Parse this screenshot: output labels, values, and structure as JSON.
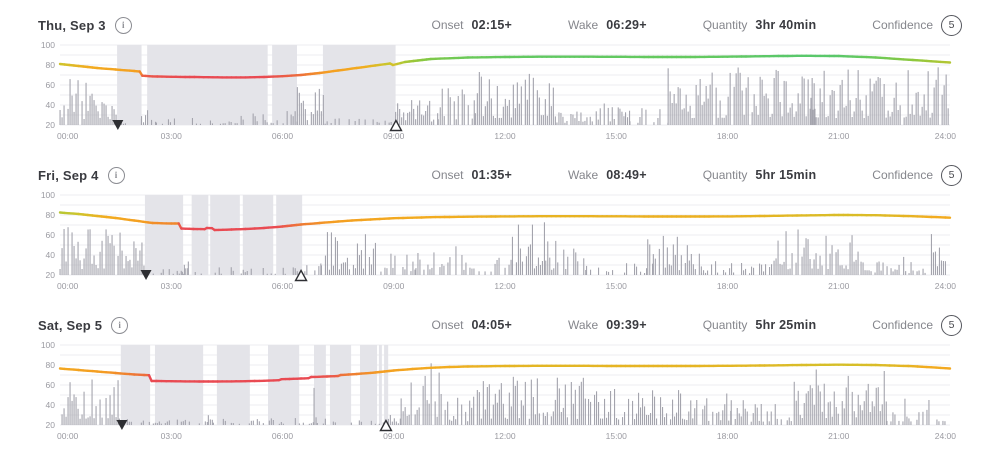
{
  "metrics_labels": {
    "onset": "Onset",
    "wake": "Wake",
    "quantity": "Quantity",
    "confidence": "Confidence"
  },
  "info_icon_glyph": "i",
  "colors": {
    "bar": "#a4a4ad",
    "sleep_block": "#e4e4e9",
    "grid": "#ededf1",
    "axis_text": "#9a9aa1",
    "marker": "#2e2f33",
    "line_color_anchors": [
      [
        68,
        "#e94a52"
      ],
      [
        71,
        "#ef8130"
      ],
      [
        73,
        "#f49d22"
      ],
      [
        78,
        "#f2ac1f"
      ],
      [
        81,
        "#cdc52c"
      ],
      [
        85,
        "#8cc83e"
      ],
      [
        88,
        "#64c95e"
      ],
      [
        92,
        "#3fc48c"
      ]
    ]
  },
  "axis": {
    "y_ticks": [
      100,
      80,
      60,
      40,
      20
    ],
    "y_min": 20,
    "y_max": 100,
    "x_tick_hours": [
      0,
      3,
      6,
      9,
      12,
      15,
      18,
      21,
      24
    ],
    "x_tick_labels": [
      "00:00",
      "03:00",
      "06:00",
      "09:00",
      "12:00",
      "15:00",
      "18:00",
      "21:00",
      "24:00"
    ],
    "grid_step": 10
  },
  "chart_data": [
    {
      "type": "line+bars",
      "date": "Thu, Sep 3",
      "onset": "02:15+",
      "wake": "06:29+",
      "quantity": "3hr 40min",
      "confidence": "5",
      "seed": 3,
      "sleep_blocks": [
        [
          1.54,
          2.2
        ],
        [
          2.35,
          5.6
        ],
        [
          5.72,
          6.39
        ],
        [
          7.09,
          9.05
        ]
      ],
      "onset_marker_hour": 1.56,
      "wake_marker_hour": 9.06,
      "line": [
        [
          0,
          81
        ],
        [
          0.5,
          79
        ],
        [
          1,
          77
        ],
        [
          1.5,
          75.5
        ],
        [
          2,
          74
        ],
        [
          2.15,
          73.5
        ],
        [
          2.22,
          69.3
        ],
        [
          2.5,
          68.6
        ],
        [
          3,
          68.2
        ],
        [
          3.5,
          68
        ],
        [
          4,
          67.8
        ],
        [
          4.5,
          67.6
        ],
        [
          5,
          67.6
        ],
        [
          5.5,
          68
        ],
        [
          6,
          68.8
        ],
        [
          6.5,
          70
        ],
        [
          7,
          72
        ],
        [
          7.5,
          74.5
        ],
        [
          8,
          77
        ],
        [
          8.5,
          79.5
        ],
        [
          8.9,
          81.5
        ],
        [
          8.98,
          80
        ],
        [
          9.3,
          83
        ],
        [
          10,
          86
        ],
        [
          11,
          87.5
        ],
        [
          12,
          88
        ],
        [
          13,
          88.3
        ],
        [
          14,
          88.3
        ],
        [
          15,
          88.2
        ],
        [
          16,
          88
        ],
        [
          17,
          88
        ],
        [
          18,
          88.3
        ],
        [
          19,
          88.8
        ],
        [
          20,
          89.2
        ],
        [
          21,
          89
        ],
        [
          22,
          87.5
        ],
        [
          23,
          85
        ],
        [
          24,
          82.5
        ]
      ],
      "activity_segments": [
        [
          0.0,
          1.55,
          46,
          0.97
        ],
        [
          1.55,
          2.2,
          8,
          0.5
        ],
        [
          2.2,
          2.6,
          22,
          0.6
        ],
        [
          2.6,
          4.4,
          7,
          0.45
        ],
        [
          4.4,
          6.4,
          14,
          0.55
        ],
        [
          6.4,
          7.15,
          40,
          0.85
        ],
        [
          7.15,
          9.05,
          7,
          0.4
        ],
        [
          9.05,
          10.2,
          26,
          0.8
        ],
        [
          10.2,
          11.2,
          42,
          0.85
        ],
        [
          11.2,
          13.4,
          58,
          0.9
        ],
        [
          13.4,
          14.3,
          14,
          0.6
        ],
        [
          14.3,
          15.1,
          30,
          0.7
        ],
        [
          15.1,
          16.4,
          18,
          0.5
        ],
        [
          15.25,
          15.38,
          55,
          1
        ],
        [
          16.4,
          24.0,
          58,
          0.97
        ],
        [
          20.25,
          20.4,
          72,
          1
        ]
      ]
    },
    {
      "type": "line+bars",
      "date": "Fri, Sep 4",
      "onset": "01:35+",
      "wake": "08:49+",
      "quantity": "5hr 15min",
      "confidence": "5",
      "seed": 7,
      "sleep_blocks": [
        [
          2.29,
          3.32
        ],
        [
          3.55,
          4.0
        ],
        [
          4.05,
          4.85
        ],
        [
          4.93,
          5.75
        ],
        [
          5.83,
          6.53
        ]
      ],
      "onset_marker_hour": 2.32,
      "wake_marker_hour": 6.5,
      "line": [
        [
          0,
          82.5
        ],
        [
          0.5,
          81
        ],
        [
          1,
          79
        ],
        [
          1.5,
          77
        ],
        [
          2,
          74.5
        ],
        [
          2.5,
          72
        ],
        [
          3,
          71.5
        ],
        [
          3.2,
          71.5
        ],
        [
          3.27,
          66.5
        ],
        [
          3.6,
          66
        ],
        [
          3.9,
          65.8
        ],
        [
          3.96,
          67
        ],
        [
          4.1,
          66.8
        ],
        [
          4.17,
          65
        ],
        [
          4.5,
          65.3
        ],
        [
          5,
          66
        ],
        [
          5.5,
          67
        ],
        [
          6,
          68.5
        ],
        [
          6.5,
          70.5
        ],
        [
          7,
          72
        ],
        [
          7.5,
          73.5
        ],
        [
          8,
          74.8
        ],
        [
          8.5,
          75.8
        ],
        [
          9,
          76.8
        ],
        [
          9.5,
          77.3
        ],
        [
          10,
          77.8
        ],
        [
          11,
          78.3
        ],
        [
          12,
          78.6
        ],
        [
          13,
          78.8
        ],
        [
          14,
          78.8
        ],
        [
          15,
          78.7
        ],
        [
          16,
          78.5
        ],
        [
          17,
          78.5
        ],
        [
          18,
          78.6
        ],
        [
          19,
          79
        ],
        [
          20,
          79.6
        ],
        [
          21,
          80
        ],
        [
          22,
          79.8
        ],
        [
          23,
          78.8
        ],
        [
          24,
          77.3
        ]
      ],
      "activity_segments": [
        [
          0.0,
          2.3,
          50,
          0.96
        ],
        [
          2.3,
          6.55,
          8,
          0.45
        ],
        [
          3.3,
          3.5,
          22,
          0.7
        ],
        [
          6.55,
          7.05,
          12,
          0.6
        ],
        [
          7.05,
          8.6,
          44,
          0.9
        ],
        [
          8.6,
          9.6,
          24,
          0.7
        ],
        [
          9.6,
          11.3,
          30,
          0.75
        ],
        [
          11.3,
          12.2,
          20,
          0.65
        ],
        [
          12.2,
          13.1,
          55,
          0.9
        ],
        [
          13.1,
          14.2,
          35,
          0.8
        ],
        [
          14.2,
          16.0,
          12,
          0.5
        ],
        [
          15.85,
          15.95,
          45,
          1
        ],
        [
          16.0,
          17.3,
          40,
          0.8
        ],
        [
          17.3,
          19.2,
          14,
          0.55
        ],
        [
          19.2,
          21.6,
          46,
          0.92
        ],
        [
          21.6,
          23.4,
          14,
          0.5
        ],
        [
          22.75,
          22.85,
          32,
          1
        ],
        [
          23.5,
          24.0,
          46,
          0.9
        ]
      ]
    },
    {
      "type": "line+bars",
      "date": "Sat, Sep 5",
      "onset": "04:05+",
      "wake": "09:39+",
      "quantity": "5hr 25min",
      "confidence": "5",
      "seed": 11,
      "sleep_blocks": [
        [
          1.64,
          2.43
        ],
        [
          2.56,
          3.86
        ],
        [
          4.23,
          5.12
        ],
        [
          5.61,
          6.45
        ],
        [
          6.85,
          7.17
        ],
        [
          7.28,
          7.85
        ],
        [
          8.09,
          8.55
        ],
        [
          8.6,
          8.68
        ],
        [
          8.74,
          8.85
        ]
      ],
      "onset_marker_hour": 1.67,
      "wake_marker_hour": 8.79,
      "line": [
        [
          0,
          76.5
        ],
        [
          0.5,
          75
        ],
        [
          1,
          73.5
        ],
        [
          1.5,
          72
        ],
        [
          2,
          70.5
        ],
        [
          2.4,
          69.8
        ],
        [
          2.47,
          64
        ],
        [
          3,
          63.8
        ],
        [
          3.5,
          63.6
        ],
        [
          4,
          63.5
        ],
        [
          4.5,
          63.6
        ],
        [
          5,
          63.8
        ],
        [
          5.5,
          64.2
        ],
        [
          5.9,
          64.8
        ],
        [
          5.97,
          65.8
        ],
        [
          6.4,
          66.3
        ],
        [
          6.7,
          66.8
        ],
        [
          6.77,
          68
        ],
        [
          7.2,
          68.5
        ],
        [
          7.5,
          69
        ],
        [
          7.57,
          70
        ],
        [
          8,
          71
        ],
        [
          8.5,
          72.5
        ],
        [
          9,
          74.5
        ],
        [
          9.5,
          76
        ],
        [
          10,
          77.2
        ],
        [
          10.5,
          78
        ],
        [
          11,
          78.5
        ],
        [
          12,
          79
        ],
        [
          13,
          79.2
        ],
        [
          14,
          79.2
        ],
        [
          15,
          79
        ],
        [
          16,
          79
        ],
        [
          17,
          79
        ],
        [
          18,
          79.2
        ],
        [
          19,
          79.5
        ],
        [
          20,
          80
        ],
        [
          21,
          80.3
        ],
        [
          22,
          80
        ],
        [
          23,
          78.8
        ],
        [
          24,
          76.5
        ]
      ],
      "activity_segments": [
        [
          0.0,
          1.6,
          46,
          0.88
        ],
        [
          1.6,
          8.8,
          7,
          0.45
        ],
        [
          4.0,
          4.12,
          20,
          1
        ],
        [
          6.85,
          6.95,
          50,
          1
        ],
        [
          8.8,
          9.2,
          14,
          0.6
        ],
        [
          9.2,
          10.4,
          62,
          0.9
        ],
        [
          10.4,
          11.2,
          30,
          0.75
        ],
        [
          11.2,
          14.2,
          50,
          0.9
        ],
        [
          14.2,
          16.9,
          44,
          0.9
        ],
        [
          16.9,
          18.1,
          34,
          0.8
        ],
        [
          18.1,
          19.8,
          26,
          0.65
        ],
        [
          19.8,
          22.3,
          58,
          0.92
        ],
        [
          22.3,
          24.0,
          30,
          0.75
        ]
      ]
    }
  ]
}
